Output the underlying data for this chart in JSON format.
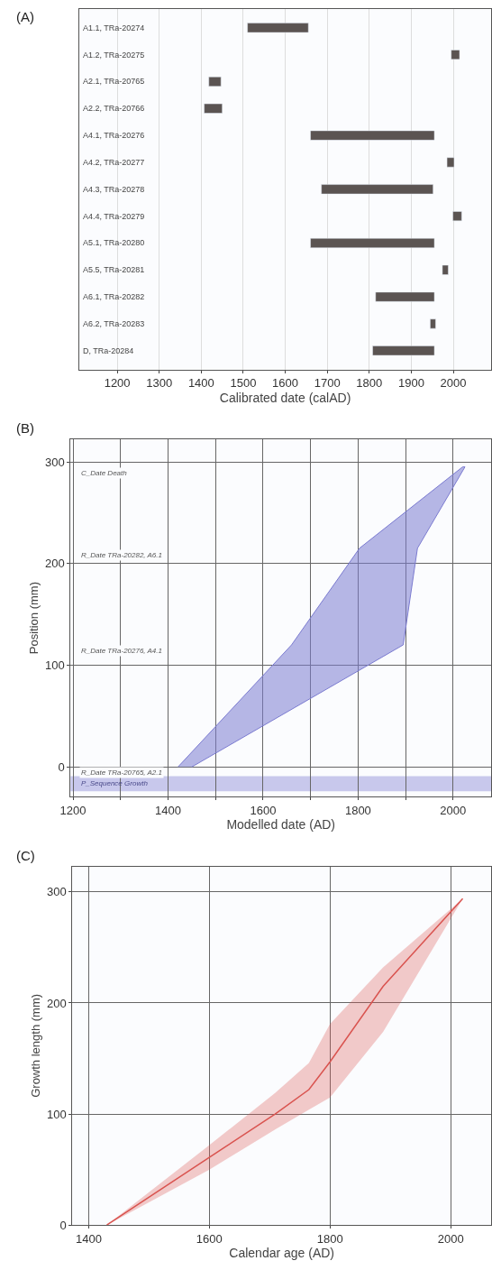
{
  "chart_data": [
    {
      "type": "bar",
      "title": "(A)",
      "orientation": "horizontal",
      "categories": [
        "A1.1, TRa-20274",
        "A1.2, TRa-20275",
        "A2.1, TRa-20765",
        "A2.2, TRa-20766",
        "A4.1, TRa-20276",
        "A4.2, TRa-20277",
        "A4.3, TRa-20278",
        "A4.4, TRa-20279",
        "A5.1, TRa-20280",
        "A5.5, TRa-20281",
        "A6.1, TRa-20282",
        "A6.2, TRa-20283",
        "D, TRa-20284"
      ],
      "base": [
        1510,
        1995,
        1418,
        1407,
        1660,
        1985,
        1686,
        1999,
        1660,
        1974,
        1815,
        1945,
        1808
      ],
      "values": [
        145,
        20,
        29,
        43,
        295,
        17,
        266,
        21,
        295,
        14,
        140,
        13,
        147
      ],
      "color": "#5b5452",
      "xlabel": "Calibrated date (calAD)",
      "xlim": [
        1110,
        2090
      ],
      "xticks": [
        1200,
        1300,
        1400,
        1500,
        1600,
        1700,
        1800,
        1900,
        2000
      ],
      "grid": "x"
    },
    {
      "type": "area",
      "title": "(B)",
      "xlabel": "Modelled date (AD)",
      "ylabel": "Position (mm)",
      "series": [
        {
          "color": "#7b7bd0",
          "x": [
            1421,
            1660,
            1803,
            2020,
            2025,
            1925,
            1895,
            1450
          ],
          "values": [
            0,
            120,
            215,
            295,
            295,
            215,
            120,
            0
          ]
        }
      ],
      "bands": [
        {
          "axis": "y",
          "from": -24,
          "to": -9,
          "label": "P_Sequence Growth",
          "color": "#c8c8ec"
        }
      ],
      "annotations": [
        "C_Date Death",
        "R_Date TRa-20282, A6.1",
        "R_Date TRa-20276, A4.1",
        "R_Date TRa-20765, A2.1"
      ],
      "xlim": [
        1195,
        2080
      ],
      "xticks": [
        1200,
        {
          "value": 1300,
          "label": null
        },
        1400,
        {
          "value": 1500,
          "label": null
        },
        1600,
        {
          "value": 1700,
          "label": null
        },
        1800,
        {
          "value": 1900,
          "label": null
        },
        2000
      ],
      "ylim": [
        -29,
        322
      ],
      "yticks": [
        0,
        100,
        200,
        300
      ],
      "grid": true
    },
    {
      "type": "line",
      "title": "(C)",
      "xlabel": "Calendar age (AD)",
      "ylabel": "Growth length (mm)",
      "x": [
        1430,
        1600,
        1709,
        1765,
        1800,
        1888,
        2020
      ],
      "series": [
        {
          "color": "#d9534f",
          "values": [
            0,
            61,
            100,
            122,
            147,
            215,
            294
          ],
          "lower": [
            0,
            50,
            86,
            104,
            115,
            174,
            294
          ],
          "upper": [
            0,
            72,
            119,
            146,
            181,
            232,
            294
          ]
        }
      ],
      "xlim": [
        1373,
        2067
      ],
      "xticks": [
        1400,
        1600,
        1800,
        2000
      ],
      "ylim": [
        0,
        323
      ],
      "yticks": [
        0,
        100,
        200,
        300
      ],
      "grid": true
    }
  ]
}
